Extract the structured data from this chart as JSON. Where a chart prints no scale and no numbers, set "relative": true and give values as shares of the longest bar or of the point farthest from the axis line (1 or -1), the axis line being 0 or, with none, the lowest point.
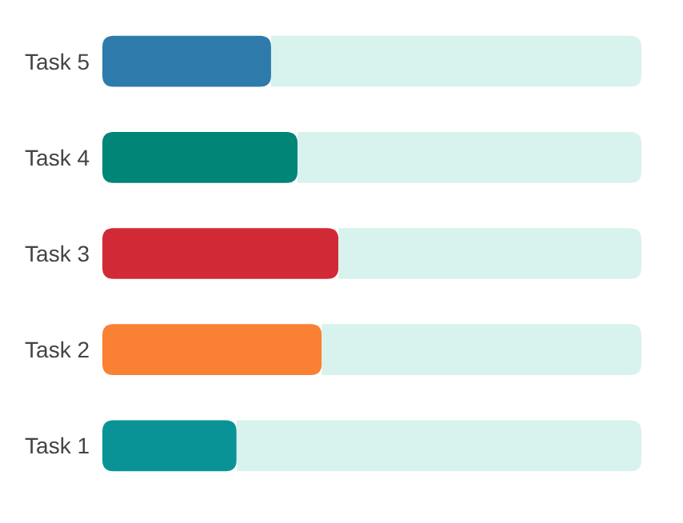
{
  "chart_data": {
    "type": "bar",
    "orientation": "horizontal",
    "stacked": true,
    "relative": true,
    "categories": [
      "Task 5",
      "Task 4",
      "Task 3",
      "Task 2",
      "Task 1"
    ],
    "series": [
      {
        "values": [
          0.313,
          0.362,
          0.438,
          0.407,
          0.249
        ],
        "colors": [
          "#2e7bab",
          "#008577",
          "#d12a36",
          "#fa8034",
          "#0a9396"
        ]
      },
      {
        "values": [
          0.687,
          0.638,
          0.562,
          0.593,
          0.751
        ],
        "color": "#d8f3ee"
      }
    ]
  }
}
